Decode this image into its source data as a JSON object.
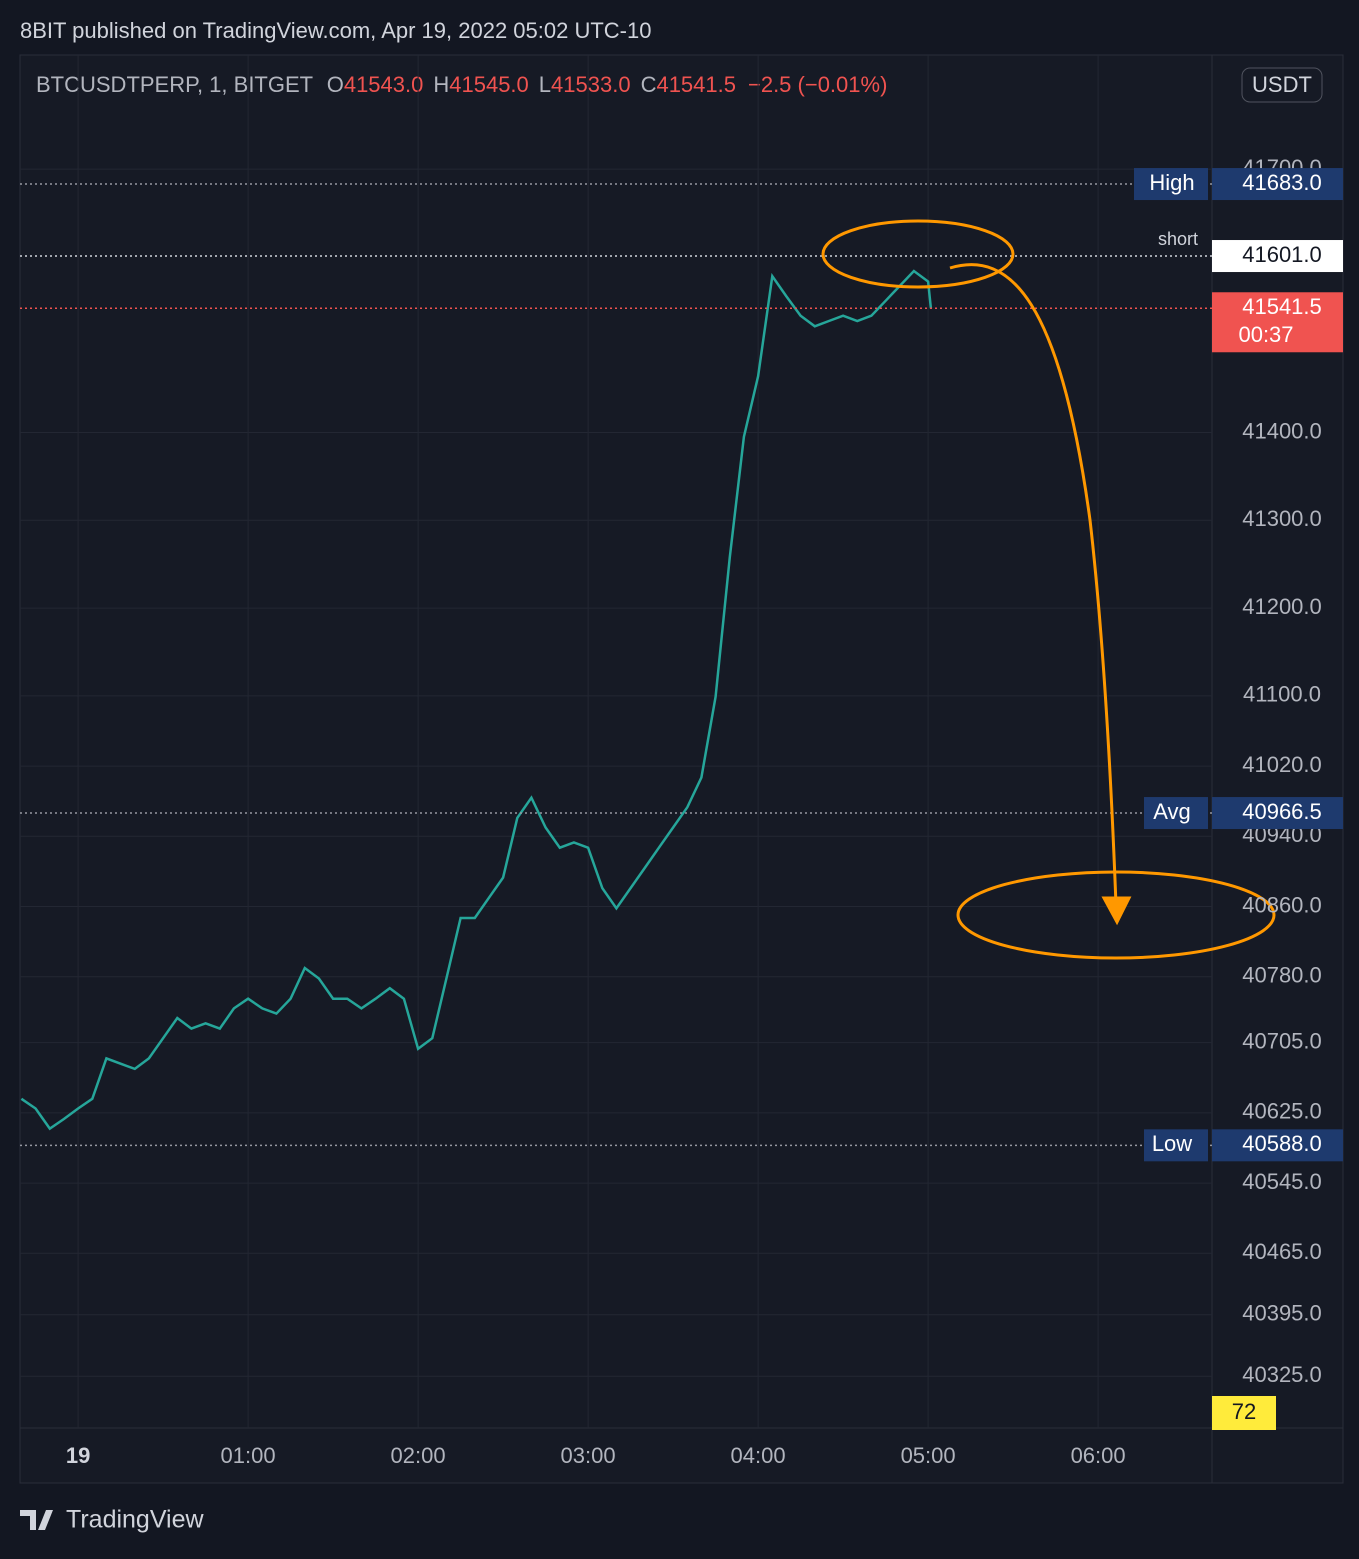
{
  "header": {
    "published": "8BIT published on TradingView.com, Apr 19, 2022 05:02 UTC-10"
  },
  "legend": {
    "symbol": "BTCUSDTPERP, 1, BITGET",
    "o_label": "O",
    "open": "41543.0",
    "h_label": "H",
    "high": "41545.0",
    "l_label": "L",
    "low": "41533.0",
    "c_label": "C",
    "close": "41541.5",
    "change": "−2.5 (−0.01%)"
  },
  "currency": "USDT",
  "volume_label": "72",
  "countdown": "00:37",
  "brand": "TradingView",
  "chart_data": {
    "type": "line",
    "color": "#26a69a",
    "x": [
      -20,
      -15,
      -10,
      -5,
      0,
      5,
      10,
      15,
      20,
      25,
      30,
      35,
      40,
      45,
      50,
      55,
      60,
      65,
      70,
      75,
      80,
      85,
      90,
      95,
      100,
      105,
      110,
      115,
      120,
      125,
      130,
      135,
      140,
      145,
      150,
      155,
      160,
      165,
      170,
      175,
      180,
      185,
      190,
      195,
      200,
      205,
      210,
      215,
      220,
      225,
      230,
      235,
      240,
      245,
      250,
      255,
      260,
      265,
      270,
      275,
      280,
      285,
      290,
      295,
      300,
      301
    ],
    "values": [
      40641,
      40630,
      40607,
      40618,
      40630,
      40641,
      40687,
      40681,
      40675,
      40687,
      40710,
      40733,
      40721,
      40727,
      40721,
      40744,
      40755,
      40744,
      40738,
      40755,
      40790,
      40778,
      40755,
      40755,
      40744,
      40755,
      40767,
      40755,
      40698,
      40710,
      40778,
      40847,
      40847,
      40870,
      40893,
      40961,
      40984,
      40950,
      40927,
      40933,
      40927,
      40881,
      40858,
      40881,
      40904,
      40927,
      40950,
      40973,
      41007,
      41099,
      41258,
      41395,
      41464,
      41578,
      41555,
      41533,
      41521,
      41527,
      41533,
      41527,
      41533,
      41550,
      41567,
      41584,
      41572,
      41541.5
    ],
    "xlim": [
      -20.5,
      400.2
    ],
    "ylim": [
      40266,
      41830
    ],
    "xticks": [
      {
        "value": 0,
        "label": "19"
      },
      {
        "value": 60,
        "label": "01:00"
      },
      {
        "value": 120,
        "label": "02:00"
      },
      {
        "value": 180,
        "label": "03:00"
      },
      {
        "value": 240,
        "label": "04:00"
      },
      {
        "value": 300,
        "label": "05:00"
      },
      {
        "value": 360,
        "label": "06:00"
      }
    ],
    "yticks": [
      {
        "value": 41700,
        "label": "41700.0"
      },
      {
        "value": 41400,
        "label": "41400.0"
      },
      {
        "value": 41300,
        "label": "41300.0"
      },
      {
        "value": 41200,
        "label": "41200.0"
      },
      {
        "value": 41100,
        "label": "41100.0"
      },
      {
        "value": 41020,
        "label": "41020.0"
      },
      {
        "value": 40940,
        "label": "40940.0"
      },
      {
        "value": 40860,
        "label": "40860.0"
      },
      {
        "value": 40780,
        "label": "40780.0"
      },
      {
        "value": 40705,
        "label": "40705.0"
      },
      {
        "value": 40625,
        "label": "40625.0"
      },
      {
        "value": 40545,
        "label": "40545.0"
      },
      {
        "value": 40465,
        "label": "40465.0"
      },
      {
        "value": 40395,
        "label": "40395.0"
      },
      {
        "value": 40325,
        "label": "40325.0"
      }
    ],
    "grid": true,
    "levels": [
      {
        "name": "High",
        "value": 41683,
        "label": "41683.0",
        "color": "#1e3a6e"
      },
      {
        "name": "short",
        "value": 41601,
        "label": "41601.0",
        "color": "#ffffff"
      },
      {
        "value": 41541.5,
        "label": "41541.5",
        "color": "#f05350"
      },
      {
        "name": "Avg",
        "value": 40966.5,
        "label": "40966.5",
        "color": "#1e3a6e"
      },
      {
        "name": "Low",
        "value": 40588,
        "label": "40588.0",
        "color": "#1e3a6e"
      }
    ]
  }
}
